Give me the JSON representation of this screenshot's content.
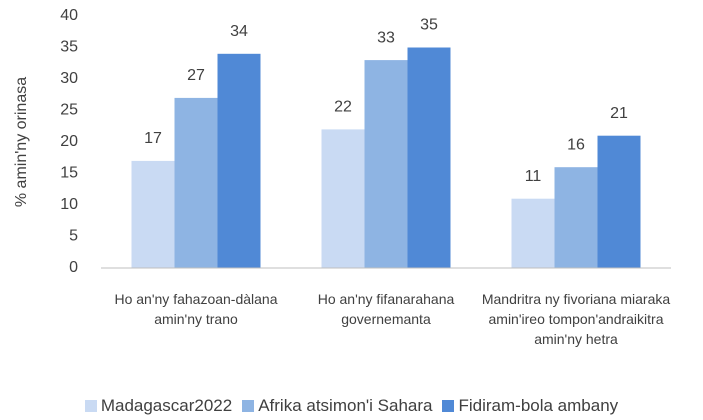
{
  "chart_data": {
    "type": "bar",
    "y_label": "% amin'ny orinasa",
    "categories": [
      "Ho an'ny fahazoan-dàlana amin'ny trano",
      "Ho an'ny fifanarahana governemanta",
      "Mandritra ny fivoriana miaraka amin'ireo tompon'andraikitra amin'ny hetra"
    ],
    "series": [
      {
        "name": "Madagascar2022",
        "color": "#c9daf3",
        "values": [
          17,
          22,
          11
        ]
      },
      {
        "name": "Afrika atsimon'i Sahara",
        "color": "#8eb4e3",
        "values": [
          27,
          33,
          16
        ]
      },
      {
        "name": "Fidiram-bola ambany",
        "color": "#5089d6",
        "values": [
          34,
          35,
          21
        ]
      }
    ],
    "ylim": [
      0,
      40
    ],
    "yticks": [
      0,
      5,
      10,
      15,
      20,
      25,
      30,
      35,
      40
    ],
    "grid": false,
    "legend": "bottom"
  }
}
